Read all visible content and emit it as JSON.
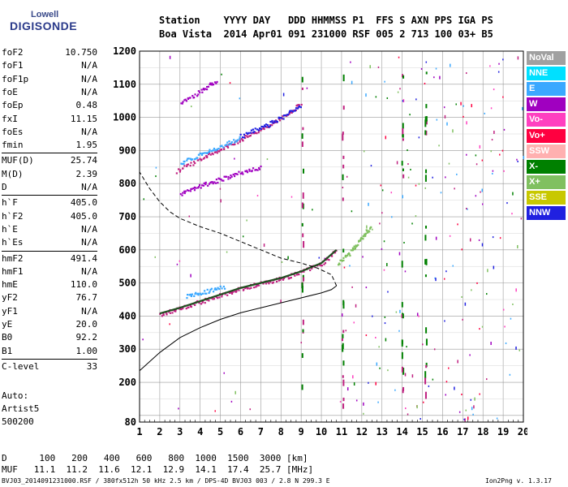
{
  "logo": {
    "top": "Lowell",
    "main": "DIGISONDE"
  },
  "header": {
    "row1": "Station    YYYY DAY   DDD HHMMSS P1  FFS S AXN PPS IGA PS",
    "row2": "Boa Vista  2014 Apr01 091 231000 RSF 005 2 713 100 03+ B5"
  },
  "params": [
    {
      "k": "foF2",
      "v": "10.750"
    },
    {
      "k": "foF1",
      "v": "N/A"
    },
    {
      "k": "foF1p",
      "v": "N/A"
    },
    {
      "k": "foE",
      "v": "N/A"
    },
    {
      "k": "foEp",
      "v": "0.48"
    },
    {
      "k": "fxI",
      "v": "11.15"
    },
    {
      "k": "foEs",
      "v": "N/A"
    },
    {
      "k": "fmin",
      "v": "1.95"
    },
    {
      "k": "MUF(D)",
      "v": "25.74",
      "sep": true
    },
    {
      "k": "M(D)",
      "v": "2.39"
    },
    {
      "k": "D",
      "v": "N/A"
    },
    {
      "k": "h`F",
      "v": "405.0",
      "sep": true
    },
    {
      "k": "h`F2",
      "v": "405.0"
    },
    {
      "k": "h`E",
      "v": "N/A"
    },
    {
      "k": "h`Es",
      "v": "N/A"
    },
    {
      "k": "hmF2",
      "v": "491.4",
      "sep": true
    },
    {
      "k": "hmF1",
      "v": "N/A"
    },
    {
      "k": "hmE",
      "v": "110.0"
    },
    {
      "k": "yF2",
      "v": "76.7"
    },
    {
      "k": "yF1",
      "v": "N/A"
    },
    {
      "k": "yE",
      "v": "20.0"
    },
    {
      "k": "B0",
      "v": "92.2"
    },
    {
      "k": "B1",
      "v": "1.00"
    },
    {
      "k": "C-level",
      "v": "33",
      "sep": true
    }
  ],
  "auto": {
    "line1": "Auto:",
    "line2": "Artist5",
    "line3": "500200"
  },
  "legend": [
    {
      "label": "NoVal",
      "color": "#a0a0a0"
    },
    {
      "label": "NNE",
      "color": "#00e0ff"
    },
    {
      "label": "E",
      "color": "#3aa8ff"
    },
    {
      "label": "W",
      "color": "#a000c0"
    },
    {
      "label": "Vo-",
      "color": "#ff40c0"
    },
    {
      "label": "Vo+",
      "color": "#ff0040"
    },
    {
      "label": "SSW",
      "color": "#ffb0b0"
    },
    {
      "label": "X-",
      "color": "#008000"
    },
    {
      "label": "X+",
      "color": "#80c060"
    },
    {
      "label": "SSE",
      "color": "#c8c800"
    },
    {
      "label": "NNW",
      "color": "#2020e0"
    }
  ],
  "footer": {
    "d_row": "D      100   200   400   600   800  1000  1500  3000 [km]",
    "muf_row": "MUF   11.1  11.2  11.6  12.1  12.9  14.1  17.4  25.7 [MHz]",
    "file": "BVJ03_2014091231000.RSF / 380fx512h 50 kHz 2.5 km / DPS-4D BVJ03 003 / 2.8 N 299.3 E",
    "version": "Ion2Png v. 1.3.17"
  },
  "chart_data": {
    "type": "scatter",
    "xlim": [
      1,
      20
    ],
    "ylim": [
      80,
      1200
    ],
    "xticks": [
      1,
      2,
      3,
      4,
      5,
      6,
      7,
      8,
      9,
      10,
      11,
      12,
      13,
      14,
      15,
      16,
      17,
      18,
      19,
      20
    ],
    "yticks": [
      80,
      100,
      200,
      300,
      400,
      500,
      600,
      700,
      800,
      900,
      1000,
      1100,
      1200
    ],
    "ytick_labels": [
      80,
      "",
      200,
      300,
      400,
      500,
      600,
      700,
      800,
      900,
      1000,
      1100,
      1200
    ],
    "grid": true,
    "traces": [
      {
        "name": "O-trace",
        "color": "#c02080",
        "points": [
          [
            2,
            408
          ],
          [
            3,
            425
          ],
          [
            4,
            445
          ],
          [
            5,
            465
          ],
          [
            6,
            485
          ],
          [
            7,
            500
          ],
          [
            8,
            515
          ],
          [
            9,
            535
          ],
          [
            10,
            560
          ],
          [
            10.75,
            600
          ]
        ]
      },
      {
        "name": "E-segment",
        "color": "#3aa8ff",
        "points": [
          [
            3.3,
            462
          ],
          [
            4.2,
            475
          ],
          [
            5.2,
            492
          ]
        ]
      },
      {
        "name": "2-hop",
        "color": "#c02080",
        "points": [
          [
            2.8,
            840
          ],
          [
            4,
            875
          ],
          [
            5,
            905
          ],
          [
            6,
            935
          ],
          [
            7,
            965
          ],
          [
            8,
            1000
          ],
          [
            9,
            1045
          ]
        ]
      },
      {
        "name": "2-hop-cyan",
        "color": "#3aa8ff",
        "points": [
          [
            3,
            865
          ],
          [
            4,
            890
          ],
          [
            5,
            915
          ],
          [
            6,
            940
          ]
        ]
      },
      {
        "name": "2-hop-lower",
        "color": "#a000c0",
        "points": [
          [
            3,
            770
          ],
          [
            4,
            795
          ],
          [
            5,
            815
          ],
          [
            6,
            835
          ],
          [
            7,
            850
          ]
        ]
      },
      {
        "name": "3-hop",
        "color": "#a000c0",
        "points": [
          [
            3,
            1045
          ],
          [
            4,
            1080
          ],
          [
            4.8,
            1115
          ]
        ]
      },
      {
        "name": "NNW-band",
        "color": "#2020e0",
        "points": [
          [
            6,
            945
          ],
          [
            7,
            970
          ],
          [
            8,
            1000
          ],
          [
            9,
            1040
          ]
        ]
      },
      {
        "name": "X-trace",
        "color": "#80c060",
        "points": [
          [
            10.8,
            560
          ],
          [
            11.5,
            600
          ],
          [
            12,
            640
          ],
          [
            12.4,
            670
          ]
        ]
      }
    ],
    "profile": [
      [
        1,
        235
      ],
      [
        2,
        290
      ],
      [
        3,
        335
      ],
      [
        4,
        365
      ],
      [
        5,
        390
      ],
      [
        6,
        410
      ],
      [
        7,
        425
      ],
      [
        8,
        440
      ],
      [
        9,
        455
      ],
      [
        10,
        470
      ],
      [
        10.5,
        480
      ],
      [
        10.75,
        491.4
      ]
    ],
    "profile_upper": [
      [
        10.75,
        491.4
      ],
      [
        10.5,
        525
      ],
      [
        9.8,
        545
      ],
      [
        9,
        560
      ],
      [
        8,
        575
      ],
      [
        7,
        600
      ],
      [
        6,
        625
      ],
      [
        5,
        650
      ],
      [
        4,
        670
      ],
      [
        3,
        695
      ],
      [
        2.5,
        715
      ],
      [
        2,
        745
      ],
      [
        1.5,
        785
      ],
      [
        1,
        835
      ]
    ]
  }
}
